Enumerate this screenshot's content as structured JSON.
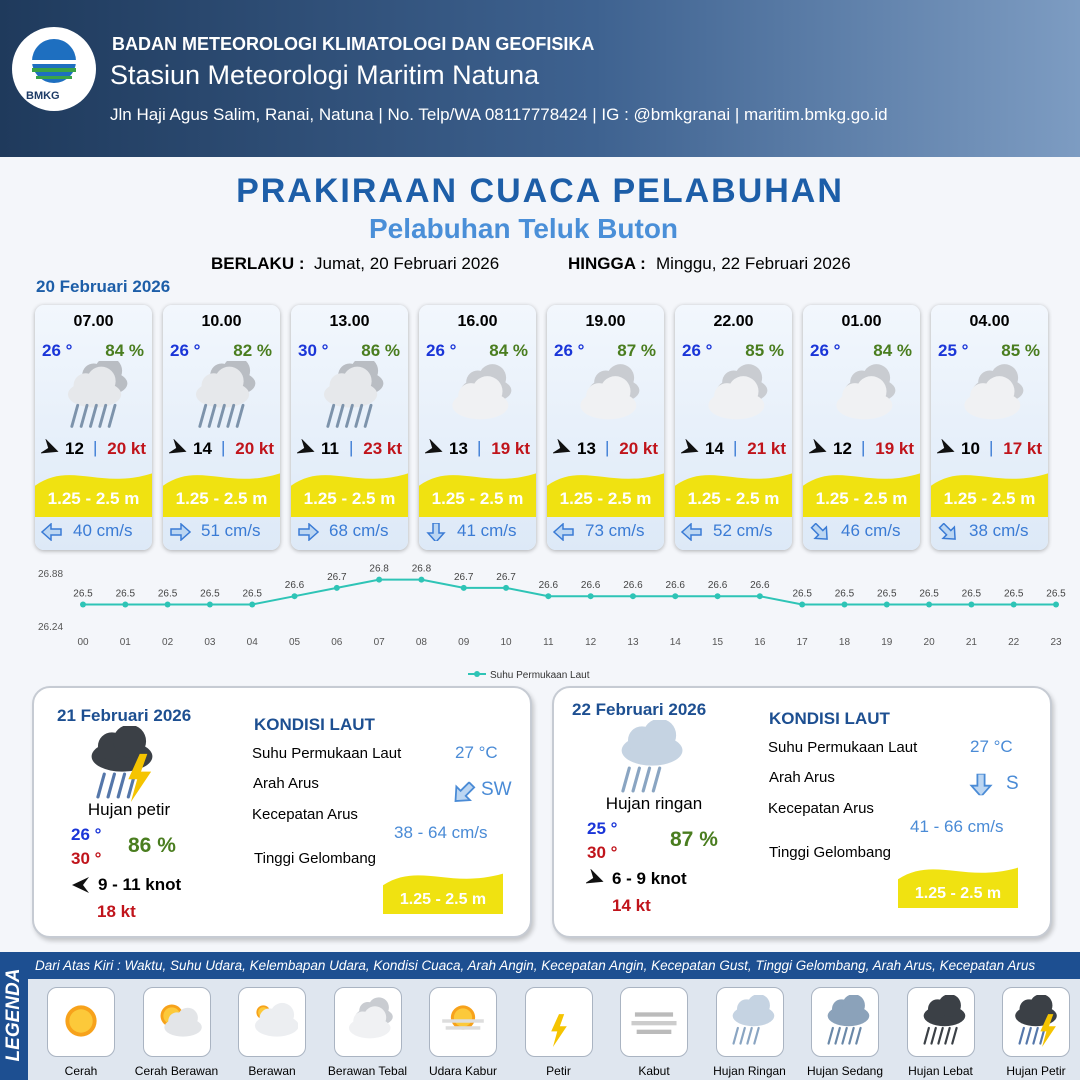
{
  "header": {
    "logo": "BMKG",
    "org": "BADAN METEOROLOGI KLIMATOLOGI DAN GEOFISIKA",
    "station": "Stasiun Meteorologi Maritim Natuna",
    "address": "Jln Haji Agus Salim, Ranai, Natuna  | No. Telp/WA 08117778424 | IG : @bmkgranai | maritim.bmkg.go.id"
  },
  "title": "PRAKIRAAN CUACA PELABUHAN",
  "subtitle": "Pelabuhan Teluk Buton",
  "validity": {
    "from_label": "BERLAKU :",
    "from": "Jumat, 20 Februari 2026",
    "to_label": "HINGGA :",
    "to": "Minggu, 22 Februari 2026"
  },
  "day1": {
    "date": "20 Februari 2026",
    "hours": [
      {
        "time": "07.00",
        "temp": "26 °",
        "humidity": "84 %",
        "wind": "12",
        "gust": "20 kt",
        "wave": "1.25 - 2.5 m",
        "current": "40 cm/s"
      },
      {
        "time": "10.00",
        "temp": "26 °",
        "humidity": "82 %",
        "wind": "14",
        "gust": "20 kt",
        "wave": "1.25 - 2.5 m",
        "current": "51 cm/s"
      },
      {
        "time": "13.00",
        "temp": "30 °",
        "humidity": "86 %",
        "wind": "11",
        "gust": "23 kt",
        "wave": "1.25 - 2.5 m",
        "current": "68 cm/s"
      },
      {
        "time": "16.00",
        "temp": "26 °",
        "humidity": "84 %",
        "wind": "13",
        "gust": "19 kt",
        "wave": "1.25 - 2.5 m",
        "current": "41 cm/s"
      },
      {
        "time": "19.00",
        "temp": "26 °",
        "humidity": "87 %",
        "wind": "13",
        "gust": "20 kt",
        "wave": "1.25 - 2.5 m",
        "current": "73 cm/s"
      },
      {
        "time": "22.00",
        "temp": "26 °",
        "humidity": "85 %",
        "wind": "14",
        "gust": "21 kt",
        "wave": "1.25 - 2.5 m",
        "current": "52 cm/s"
      },
      {
        "time": "01.00",
        "temp": "26 °",
        "humidity": "84 %",
        "wind": "12",
        "gust": "19 kt",
        "wave": "1.25 - 2.5 m",
        "current": "46 cm/s"
      },
      {
        "time": "04.00",
        "temp": "25 °",
        "humidity": "85 %",
        "wind": "10",
        "gust": "17 kt",
        "wave": "1.25 - 2.5 m",
        "current": "38 cm/s"
      }
    ]
  },
  "chart_data": {
    "type": "line",
    "categories": [
      "00",
      "01",
      "02",
      "03",
      "04",
      "05",
      "06",
      "07",
      "08",
      "09",
      "10",
      "11",
      "12",
      "13",
      "14",
      "15",
      "16",
      "17",
      "18",
      "19",
      "20",
      "21",
      "22",
      "23"
    ],
    "series": [
      {
        "name": "Suhu Permukaan Laut",
        "color": "#2ec4b6",
        "values": [
          26.5,
          26.5,
          26.5,
          26.5,
          26.5,
          26.6,
          26.7,
          26.8,
          26.8,
          26.7,
          26.7,
          26.6,
          26.6,
          26.6,
          26.6,
          26.6,
          26.6,
          26.5,
          26.5,
          26.5,
          26.5,
          26.5,
          26.5,
          26.5
        ]
      }
    ],
    "ylim": [
      26.24,
      26.88
    ],
    "yticks": [
      26.24,
      26.88
    ],
    "legend": "bottom"
  },
  "days": [
    {
      "date": "21 Februari 2026",
      "condition": "Hujan petir",
      "temp_min": "26 °",
      "temp_max": "30 °",
      "humidity": "86 %",
      "wind": "9  - 11 knot",
      "gust": "18 kt",
      "sea": {
        "title": "KONDISI LAUT",
        "sst_label": "Suhu Permukaan Laut",
        "sst": "27 °C",
        "dir_label": "Arah Arus",
        "dir": "SW",
        "speed_label": "Kecepatan Arus",
        "speed": "38  - 64 cm/s",
        "wave_label": "Tinggi Gelombang",
        "wave": "1.25 - 2.5 m"
      }
    },
    {
      "date": "22 Februari 2026",
      "condition": "Hujan ringan",
      "temp_min": "25 °",
      "temp_max": "30 °",
      "humidity": "87 %",
      "wind": "6  - 9 knot",
      "gust": "14 kt",
      "sea": {
        "title": "KONDISI LAUT",
        "sst_label": "Suhu Permukaan Laut",
        "sst": "27 °C",
        "dir_label": "Arah Arus",
        "dir": "S",
        "speed_label": "Kecepatan Arus",
        "speed": "41  - 66 cm/s",
        "wave_label": "Tinggi Gelombang",
        "wave": "1.25 - 2.5 m"
      }
    }
  ],
  "legend": {
    "title": "LEGENDA",
    "description": "Dari Atas Kiri : Waktu, Suhu Udara, Kelembapan Udara, Kondisi Cuaca, Arah Angin, Kecepatan Angin, Kecepatan Gust, Tinggi Gelombang, Arah Arus, Kecepatan Arus",
    "items": [
      "Cerah",
      "Cerah Berawan",
      "Berawan",
      "Berawan Tebal",
      "Udara Kabur",
      "Petir",
      "Kabut",
      "Hujan Ringan",
      "Hujan Sedang",
      "Hujan Lebat",
      "Hujan Petir"
    ]
  }
}
